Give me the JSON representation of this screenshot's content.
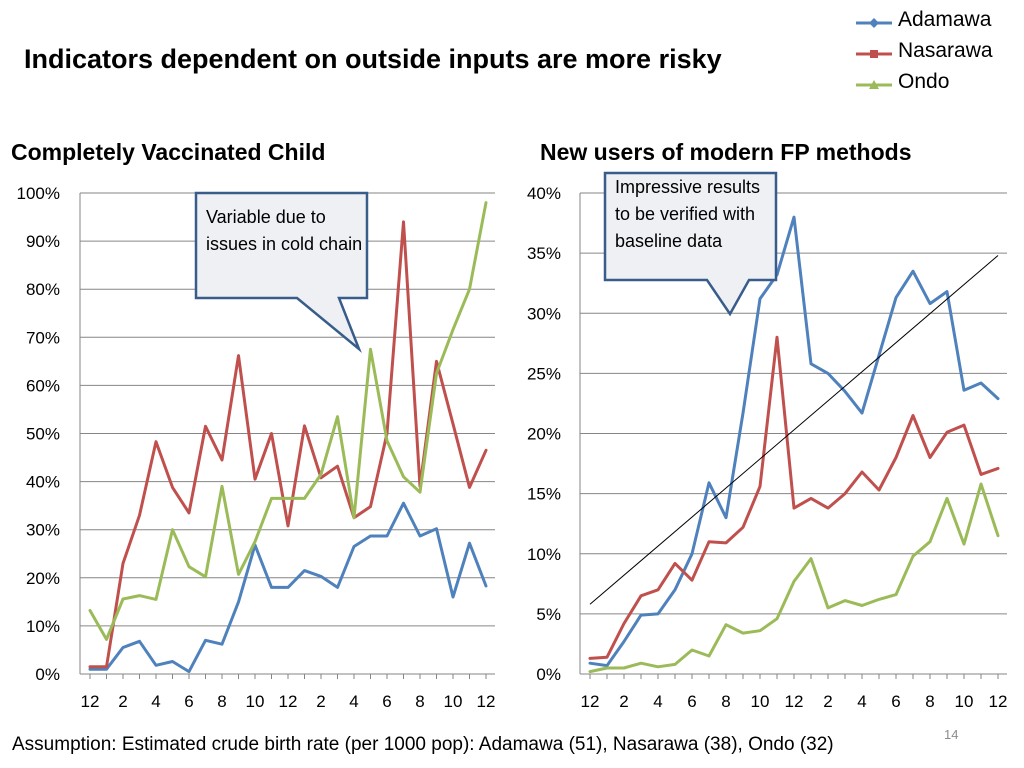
{
  "slide": {
    "title": "Indicators dependent on outside inputs are more risky",
    "footnote": "Assumption: Estimated crude birth rate (per 1000 pop): Adamawa (51), Nasarawa (38), Ondo (32)",
    "page_number": "14"
  },
  "legend": [
    {
      "name": "Adamawa",
      "color": "#4F81BD",
      "marker": "diamond"
    },
    {
      "name": "Nasarawa",
      "color": "#C0504D",
      "marker": "square"
    },
    {
      "name": "Ondo",
      "color": "#9BBB59",
      "marker": "triangle"
    }
  ],
  "callouts": {
    "left": "Variable due to issues in cold chain",
    "right": "Impressive results to be verified with baseline data"
  },
  "colors": {
    "gridline": "#868686",
    "callout_fill": "#EEF0F4",
    "callout_border": "#385D8A",
    "trendline": "#000000"
  },
  "chart_data": [
    {
      "type": "line",
      "title": "Completely Vaccinated Child",
      "xlabel": "",
      "ylabel": "",
      "ylim": [
        0,
        100
      ],
      "y_tick_labels": [
        "0%",
        "10%",
        "20%",
        "30%",
        "40%",
        "50%",
        "60%",
        "70%",
        "80%",
        "90%",
        "100%"
      ],
      "x_tick_labels": [
        "12",
        "2",
        "4",
        "6",
        "8",
        "10",
        "12",
        "2",
        "4",
        "6",
        "8",
        "10",
        "12"
      ],
      "x_tick_every": 2,
      "grid": true,
      "legend": "top-right",
      "series": [
        {
          "name": "Adamawa",
          "color": "#4F81BD",
          "values": [
            1.0,
            1.0,
            5.5,
            6.8,
            1.8,
            2.6,
            0.5,
            7.0,
            6.2,
            15.0,
            26.8,
            18.0,
            18.0,
            21.5,
            20.3,
            18.0,
            26.5,
            28.7,
            28.7,
            35.5,
            28.7,
            30.2,
            16.0,
            27.2,
            18.3
          ]
        },
        {
          "name": "Nasarawa",
          "color": "#C0504D",
          "values": [
            1.5,
            1.5,
            23.0,
            33.0,
            48.3,
            38.8,
            33.5,
            51.5,
            44.5,
            66.2,
            40.5,
            50.0,
            30.8,
            51.6,
            40.8,
            43.2,
            32.5,
            34.8,
            50.0,
            94.0,
            39.0,
            65.0,
            52.0,
            38.8,
            46.5
          ]
        },
        {
          "name": "Ondo",
          "color": "#9BBB59",
          "values": [
            13.2,
            7.2,
            15.6,
            16.3,
            15.5,
            30.0,
            22.3,
            20.2,
            39.0,
            20.7,
            27.5,
            36.5,
            36.5,
            36.5,
            41.5,
            53.5,
            32.5,
            67.5,
            48.5,
            41.0,
            37.8,
            62.5,
            71.6,
            80.0,
            98.0
          ]
        }
      ]
    },
    {
      "type": "line",
      "title": "New users of modern FP methods",
      "xlabel": "",
      "ylabel": "",
      "ylim": [
        0,
        40
      ],
      "y_tick_labels": [
        "0%",
        "5%",
        "10%",
        "15%",
        "20%",
        "25%",
        "30%",
        "35%",
        "40%"
      ],
      "x_tick_labels": [
        "12",
        "2",
        "4",
        "6",
        "8",
        "10",
        "12",
        "2",
        "4",
        "6",
        "8",
        "10",
        "12"
      ],
      "x_tick_every": 2,
      "grid": true,
      "trendline": {
        "series": "Adamawa",
        "start": 5.8,
        "end": 34.8
      },
      "series": [
        {
          "name": "Adamawa",
          "color": "#4F81BD",
          "values": [
            0.9,
            0.7,
            2.7,
            4.9,
            5.0,
            7.0,
            10.0,
            15.9,
            13.0,
            21.7,
            31.2,
            33.2,
            38.0,
            25.8,
            25.0,
            23.5,
            21.7,
            26.5,
            31.3,
            33.5,
            30.8,
            31.8,
            23.6,
            24.2,
            22.9
          ]
        },
        {
          "name": "Nasarawa",
          "color": "#C0504D",
          "values": [
            1.3,
            1.4,
            4.2,
            6.5,
            7.0,
            9.2,
            7.8,
            11.0,
            10.9,
            12.2,
            15.6,
            28.0,
            13.8,
            14.6,
            13.8,
            15.0,
            16.8,
            15.3,
            18.0,
            21.5,
            18.0,
            20.1,
            20.7,
            16.6,
            17.1
          ]
        },
        {
          "name": "Ondo",
          "color": "#9BBB59",
          "values": [
            0.2,
            0.5,
            0.5,
            0.9,
            0.6,
            0.8,
            2.0,
            1.5,
            4.1,
            3.4,
            3.6,
            4.6,
            7.7,
            9.6,
            5.5,
            6.1,
            5.7,
            6.2,
            6.6,
            9.8,
            11.0,
            14.6,
            10.8,
            15.8,
            11.5
          ]
        }
      ]
    }
  ]
}
